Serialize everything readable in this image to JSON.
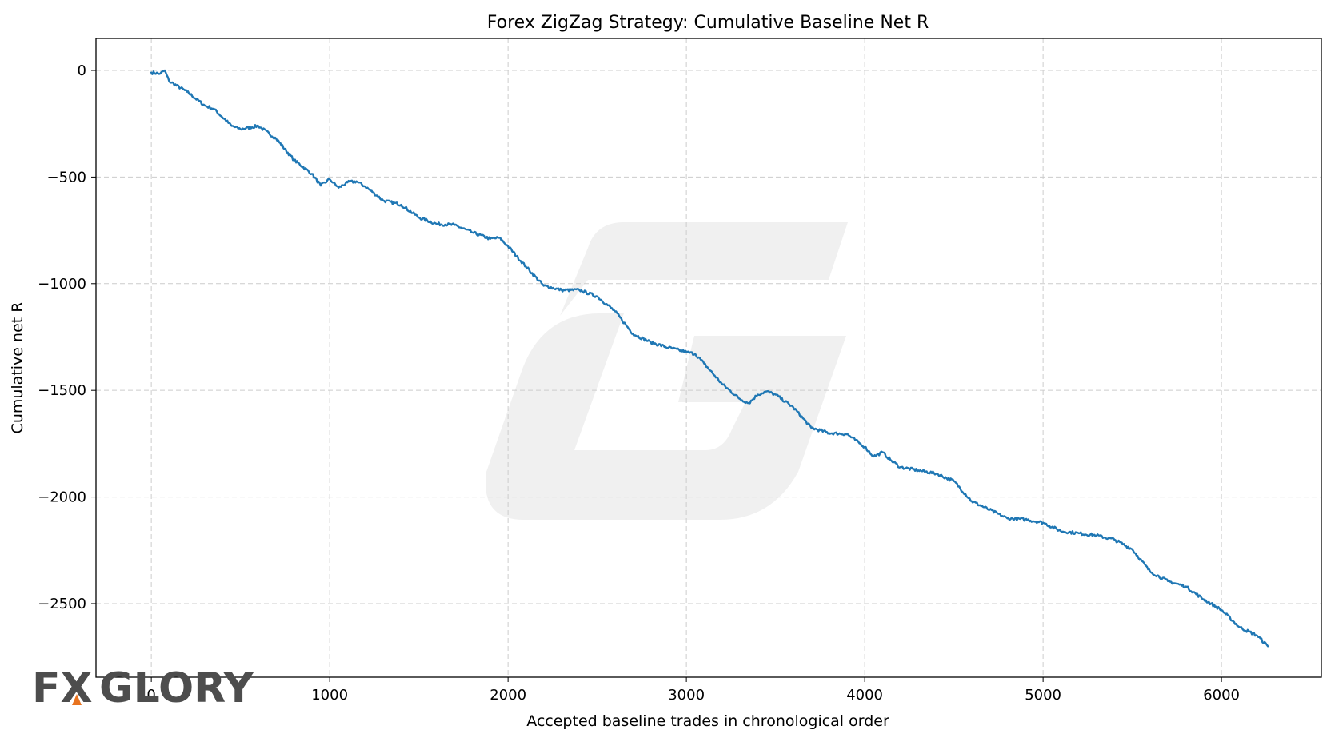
{
  "chart_data": {
    "type": "line",
    "title": "Forex ZigZag Strategy: Cumulative Baseline Net R",
    "xlabel": "Accepted baseline trades in chronological order",
    "ylabel": "Cumulative net R",
    "xlim": [
      -310,
      6560
    ],
    "ylim": [
      -2845,
      150
    ],
    "xticks": [
      0,
      1000,
      2000,
      3000,
      4000,
      5000,
      6000
    ],
    "yticks": [
      0,
      -500,
      -1000,
      -1500,
      -2000,
      -2500
    ],
    "xtick_labels": [
      "0",
      "1000",
      "2000",
      "3000",
      "4000",
      "5000",
      "6000"
    ],
    "ytick_labels": [
      "0",
      "−500",
      "−1000",
      "−1500",
      "−2000",
      "−2500"
    ],
    "grid": true,
    "series": [
      {
        "color": "#1f77b4",
        "x": [
          0,
          50,
          75,
          100,
          200,
          300,
          350,
          450,
          500,
          600,
          700,
          800,
          900,
          950,
          1000,
          1050,
          1100,
          1150,
          1200,
          1300,
          1400,
          1500,
          1600,
          1700,
          1800,
          1900,
          1950,
          2000,
          2100,
          2200,
          2300,
          2400,
          2500,
          2600,
          2700,
          2800,
          2900,
          3000,
          3050,
          3100,
          3200,
          3300,
          3350,
          3400,
          3450,
          3500,
          3600,
          3700,
          3800,
          3900,
          4000,
          4050,
          4100,
          4150,
          4200,
          4300,
          4400,
          4500,
          4600,
          4700,
          4800,
          4900,
          5000,
          5100,
          5200,
          5300,
          5400,
          5500,
          5600,
          5700,
          5800,
          5900,
          6000,
          6100,
          6200,
          6260
        ],
        "y": [
          -10,
          -15,
          0,
          -50,
          -100,
          -165,
          -180,
          -260,
          -275,
          -260,
          -320,
          -420,
          -485,
          -540,
          -510,
          -550,
          -525,
          -520,
          -545,
          -610,
          -630,
          -690,
          -720,
          -725,
          -760,
          -790,
          -785,
          -825,
          -920,
          -1010,
          -1030,
          -1030,
          -1060,
          -1130,
          -1235,
          -1275,
          -1300,
          -1320,
          -1330,
          -1375,
          -1470,
          -1540,
          -1560,
          -1520,
          -1505,
          -1520,
          -1580,
          -1675,
          -1700,
          -1705,
          -1765,
          -1810,
          -1790,
          -1830,
          -1860,
          -1875,
          -1890,
          -1925,
          -2020,
          -2060,
          -2100,
          -2105,
          -2120,
          -2160,
          -2170,
          -2180,
          -2200,
          -2245,
          -2350,
          -2395,
          -2420,
          -2480,
          -2530,
          -2610,
          -2650,
          -2700
        ]
      }
    ]
  },
  "watermark": {
    "logo_color": "#4d4d4d",
    "accent_color": "#e8731f",
    "mark_color": "#f0f0f0"
  }
}
